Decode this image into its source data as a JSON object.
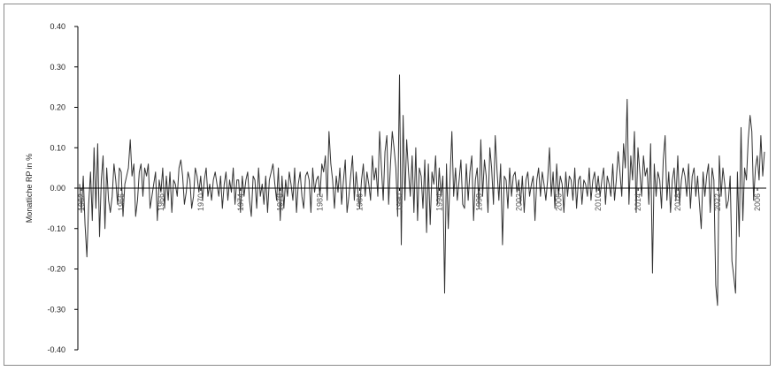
{
  "colors": {
    "line": "#333333",
    "axis": "#000000",
    "frame": "#8a8a8a",
    "background": "#ffffff"
  },
  "chart_data": {
    "type": "line",
    "title": "",
    "xlabel": "",
    "ylabel": "Monatliche RP in %",
    "ylim": [
      -0.4,
      0.4
    ],
    "yticks": [
      "0.40",
      "0.30",
      "0.20",
      "0.10",
      "0.00",
      "-0.10",
      "-0.20",
      "-0.30",
      "-0.40"
    ],
    "yticks_values": [
      0.4,
      0.3,
      0.2,
      0.1,
      0.0,
      -0.1,
      -0.2,
      -0.3,
      -0.4
    ],
    "grid": false,
    "legend": "none",
    "x_tick_labels": [
      "1962",
      "1966",
      "1966",
      "1970",
      "1974",
      "1978",
      "1982",
      "1986",
      "1990",
      "1994",
      "1998",
      "2002",
      "2006",
      "2010",
      "2014",
      "2018",
      "2022",
      "2006"
    ],
    "series": [
      {
        "values": [
          0.01,
          -0.06,
          0.03,
          -0.09,
          -0.17,
          -0.04,
          0.04,
          -0.08,
          0.1,
          -0.05,
          0.11,
          -0.12,
          0.02,
          0.08,
          -0.1,
          0.05,
          -0.03,
          -0.06,
          -0.02,
          0.06,
          0.02,
          -0.04,
          0.05,
          0.04,
          -0.07,
          0.01,
          0.03,
          0.05,
          0.12,
          0.03,
          0.06,
          -0.07,
          -0.03,
          0.04,
          0.06,
          -0.02,
          0.05,
          0.03,
          0.06,
          -0.05,
          -0.02,
          0.01,
          0.04,
          -0.08,
          0.02,
          -0.01,
          0.05,
          -0.05,
          0.03,
          -0.03,
          0.04,
          -0.06,
          0.02,
          0.01,
          -0.02,
          0.05,
          0.07,
          0.03,
          -0.04,
          -0.01,
          0.04,
          0.02,
          -0.05,
          -0.02,
          0.05,
          0.03,
          -0.01,
          0.03,
          -0.03,
          0.02,
          0.05,
          -0.02,
          0.01,
          -0.03,
          0.02,
          0.04,
          0.01,
          -0.02,
          0.03,
          -0.05,
          0.01,
          0.04,
          -0.03,
          0.02,
          -0.01,
          0.05,
          -0.04,
          0.02,
          0.02,
          -0.06,
          0.03,
          -0.02,
          0.02,
          0.04,
          -0.03,
          -0.07,
          0.03,
          0.02,
          -0.05,
          0.05,
          -0.02,
          0.01,
          -0.04,
          0.03,
          -0.06,
          0.02,
          0.04,
          0.06,
          0.01,
          -0.03,
          0.05,
          -0.08,
          0.03,
          -0.05,
          0.02,
          -0.02,
          0.04,
          0.01,
          -0.03,
          0.05,
          -0.06,
          0.01,
          0.04,
          -0.02,
          -0.05,
          0.03,
          0.04,
          0.02,
          -0.06,
          0.05,
          -0.01,
          0.02,
          0.03,
          -0.02,
          0.06,
          0.04,
          0.08,
          -0.03,
          0.14,
          0.06,
          0.02,
          -0.05,
          0.03,
          -0.01,
          0.05,
          -0.04,
          0.02,
          0.07,
          -0.06,
          -0.02,
          0.03,
          0.08,
          -0.03,
          0.04,
          -0.01,
          -0.05,
          0.02,
          0.06,
          -0.02,
          0.04,
          0.01,
          -0.03,
          0.08,
          0.02,
          0.05,
          -0.02,
          0.14,
          0.05,
          -0.03,
          0.09,
          0.13,
          -0.04,
          0.06,
          0.14,
          0.1,
          0.05,
          -0.07,
          0.28,
          -0.14,
          0.18,
          -0.03,
          0.12,
          0.04,
          -0.02,
          0.08,
          -0.06,
          0.1,
          -0.08,
          0.05,
          0.03,
          -0.05,
          0.07,
          -0.11,
          0.06,
          -0.09,
          0.04,
          0.01,
          0.08,
          -0.04,
          0.05,
          -0.02,
          0.03,
          -0.26,
          0.06,
          -0.1,
          0.03,
          0.14,
          -0.02,
          0.05,
          -0.03,
          0.02,
          0.07,
          -0.04,
          -0.05,
          0.06,
          -0.03,
          0.04,
          0.08,
          -0.08,
          0.02,
          0.05,
          -0.05,
          0.12,
          -0.02,
          0.07,
          0.03,
          -0.06,
          0.1,
          0.05,
          -0.04,
          0.13,
          0.04,
          -0.03,
          0.06,
          -0.14,
          0.03,
          0.02,
          -0.05,
          0.05,
          -0.02,
          0.03,
          0.04,
          -0.01,
          0.02,
          -0.04,
          0.03,
          -0.06,
          0.02,
          0.04,
          -0.02,
          0.01,
          0.03,
          -0.08,
          0.02,
          0.05,
          -0.02,
          0.04,
          0.01,
          -0.03,
          0.02,
          0.1,
          -0.02,
          0.04,
          -0.05,
          0.06,
          -0.02,
          0.03,
          0.01,
          -0.06,
          0.04,
          -0.02,
          0.03,
          0.02,
          -0.03,
          0.05,
          -0.05,
          0.02,
          0.03,
          -0.04,
          0.02,
          0.01,
          -0.02,
          0.05,
          -0.03,
          0.02,
          0.04,
          -0.01,
          0.03,
          -0.02,
          0.02,
          0.05,
          -0.04,
          0.03,
          0.01,
          -0.02,
          0.06,
          -0.03,
          0.02,
          0.09,
          0.04,
          -0.02,
          0.11,
          0.05,
          0.22,
          -0.04,
          0.08,
          0.02,
          0.14,
          -0.06,
          0.1,
          0.04,
          -0.02,
          0.08,
          0.03,
          0.05,
          -0.04,
          0.11,
          -0.21,
          0.06,
          -0.02,
          0.04,
          0.02,
          -0.05,
          0.07,
          0.13,
          -0.03,
          0.04,
          -0.06,
          0.02,
          0.05,
          -0.03,
          0.08,
          -0.04,
          0.02,
          0.05,
          0.03,
          -0.02,
          0.06,
          -0.05,
          0.03,
          0.05,
          -0.02,
          0.03,
          -0.04,
          -0.1,
          0.04,
          -0.02,
          0.03,
          0.06,
          -0.06,
          0.05,
          0.02,
          -0.24,
          -0.29,
          0.08,
          -0.02,
          0.05,
          0.01,
          -0.05,
          -0.03,
          0.03,
          -0.18,
          -0.22,
          -0.26,
          0.04,
          -0.12,
          0.15,
          -0.08,
          0.05,
          0.02,
          0.12,
          0.18,
          0.14,
          -0.03,
          0.05,
          0.08,
          0.02,
          0.13,
          0.03,
          0.09
        ]
      }
    ]
  }
}
